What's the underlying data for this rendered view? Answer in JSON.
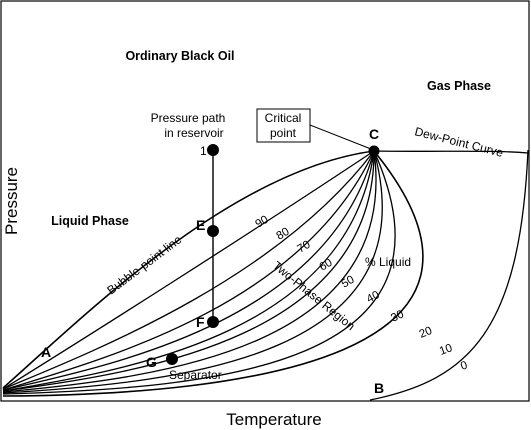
{
  "axes": {
    "y_label": "Pressure",
    "x_label": "Temperature"
  },
  "regions": {
    "black_oil": "Ordinary Black Oil",
    "gas_phase": "Gas Phase",
    "liquid_phase": "Liquid Phase"
  },
  "curves": {
    "dew_point": "Dew-Point Curve",
    "bubble_point": "Bubble-point line",
    "two_phase": "Two-Phase Region",
    "pct_liquid": "% Liquid"
  },
  "points": {
    "A": "A",
    "B": "B",
    "C": "C",
    "E": "E",
    "F": "F",
    "G": "G",
    "one": "1"
  },
  "annotations": {
    "pressure_path_line1": "Pressure path",
    "pressure_path_line2": "in reservoir",
    "critical_line1": "Critical",
    "critical_line2": "point",
    "separator": "Separator"
  },
  "iso_liquid_labels": [
    "90",
    "80",
    "70",
    "60",
    "50",
    "40",
    "30",
    "20",
    "10",
    "0"
  ]
}
